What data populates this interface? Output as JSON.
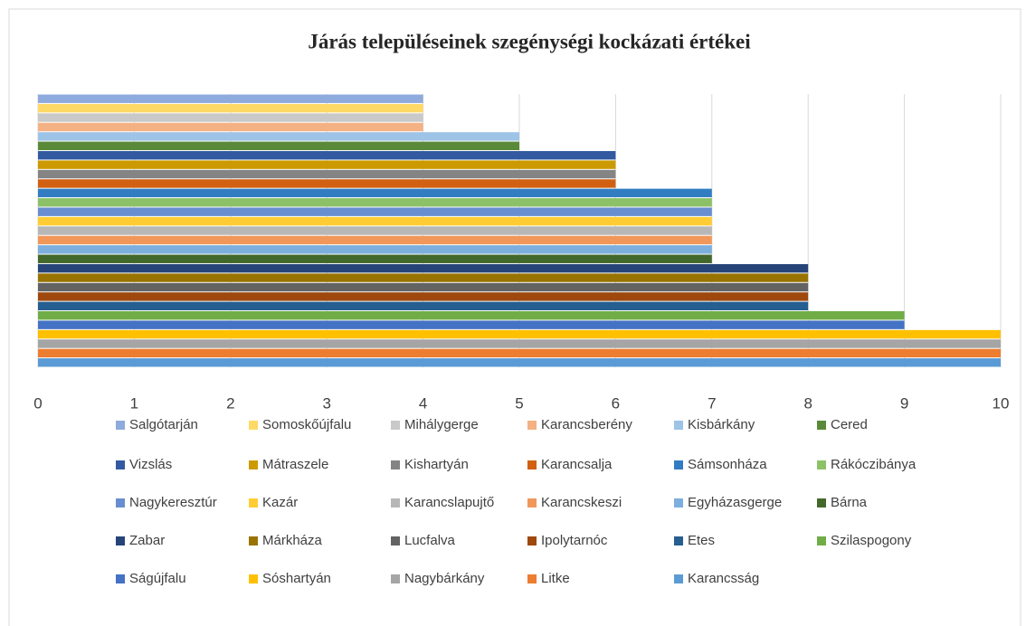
{
  "chart_data": {
    "type": "bar",
    "orientation": "horizontal",
    "title": "Járás településeinek szegénységi kockázati értékei",
    "xlim": [
      0,
      10
    ],
    "xticks": [
      0,
      1,
      2,
      3,
      4,
      5,
      6,
      7,
      8,
      9,
      10
    ],
    "grid": true,
    "legend": "bottom",
    "series": [
      {
        "name": "Salgótarján",
        "color": "#8faadc",
        "values": [
          4
        ]
      },
      {
        "name": "Somoskőújfalu",
        "color": "#ffd966",
        "values": [
          4
        ]
      },
      {
        "name": "Mihálygerge",
        "color": "#c9c9c9",
        "values": [
          4
        ]
      },
      {
        "name": "Karancsberény",
        "color": "#f4b183",
        "values": [
          4
        ]
      },
      {
        "name": "Kisbárkány",
        "color": "#9dc3e6",
        "values": [
          5
        ]
      },
      {
        "name": "Cered",
        "color": "#5a8a39",
        "values": [
          5
        ]
      },
      {
        "name": "Vizslás",
        "color": "#335aa1",
        "values": [
          6
        ]
      },
      {
        "name": "Mátraszele",
        "color": "#cc9a00",
        "values": [
          6
        ]
      },
      {
        "name": "Kishartyán",
        "color": "#848484",
        "values": [
          6
        ]
      },
      {
        "name": "Karancsalja",
        "color": "#d26012",
        "values": [
          6
        ]
      },
      {
        "name": "Sámsonháza",
        "color": "#327dc2",
        "values": [
          7
        ]
      },
      {
        "name": "Rákóczibánya",
        "color": "#8cc168",
        "values": [
          7
        ]
      },
      {
        "name": "Nagykeresztúr",
        "color": "#698ed0",
        "values": [
          7
        ]
      },
      {
        "name": "Kazár",
        "color": "#ffcd33",
        "values": [
          7
        ]
      },
      {
        "name": "Karancslapujtő",
        "color": "#b7b7b7",
        "values": [
          7
        ]
      },
      {
        "name": "Karancskeszi",
        "color": "#f1975a",
        "values": [
          7
        ]
      },
      {
        "name": "Egyházasgerge",
        "color": "#7cafdd",
        "values": [
          7
        ]
      },
      {
        "name": "Bárna",
        "color": "#43682b",
        "values": [
          7
        ]
      },
      {
        "name": "Zabar",
        "color": "#264478",
        "values": [
          8
        ]
      },
      {
        "name": "Márkháza",
        "color": "#997300",
        "values": [
          8
        ]
      },
      {
        "name": "Lucfalva",
        "color": "#636363",
        "values": [
          8
        ]
      },
      {
        "name": "Ipolytarnóc",
        "color": "#9e480e",
        "values": [
          8
        ]
      },
      {
        "name": "Etes",
        "color": "#255e91",
        "values": [
          8
        ]
      },
      {
        "name": "Szilaspogony",
        "color": "#70ad47",
        "values": [
          9
        ]
      },
      {
        "name": "Ságújfalu",
        "color": "#4472c4",
        "values": [
          9
        ]
      },
      {
        "name": "Sóshartyán",
        "color": "#ffc000",
        "values": [
          10
        ]
      },
      {
        "name": "Nagybárkány",
        "color": "#a5a5a5",
        "values": [
          10
        ]
      },
      {
        "name": "Litke",
        "color": "#ed7d31",
        "values": [
          10
        ]
      },
      {
        "name": "Karancsság",
        "color": "#5b9bd5",
        "values": [
          10
        ]
      }
    ]
  }
}
